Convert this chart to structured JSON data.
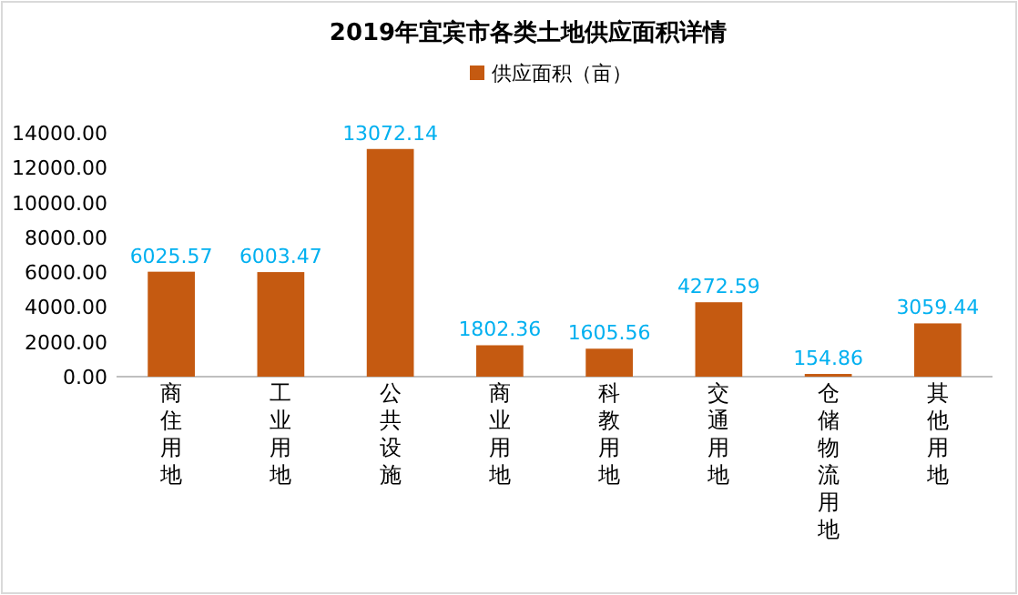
{
  "chart_data": {
    "type": "bar",
    "title": "2019年宜宾市各类土地供应面积详情",
    "categories": [
      "商住用地",
      "工业用地",
      "公共设施",
      "商业用地",
      "科教用地",
      "交通用地",
      "仓储物流用地",
      "其他用地"
    ],
    "series": [
      {
        "name": "供应面积（亩）",
        "color": "#c55a11",
        "values": [
          6025.57,
          6003.47,
          13072.14,
          1802.36,
          1605.56,
          4272.59,
          154.86,
          3059.44
        ]
      }
    ],
    "ylim": [
      0,
      14000
    ],
    "yticks": [
      {
        "value": 0,
        "label": "0.00"
      },
      {
        "value": 2000,
        "label": "2000.00"
      },
      {
        "value": 4000,
        "label": "4000.00"
      },
      {
        "value": 6000,
        "label": "6000.00"
      },
      {
        "value": 8000,
        "label": "8000.00"
      },
      {
        "value": 10000,
        "label": "10000.00"
      },
      {
        "value": 12000,
        "label": "12000.00"
      },
      {
        "value": 14000,
        "label": "14000.00"
      }
    ],
    "data_labels": true,
    "legend": "top",
    "grid": false
  }
}
